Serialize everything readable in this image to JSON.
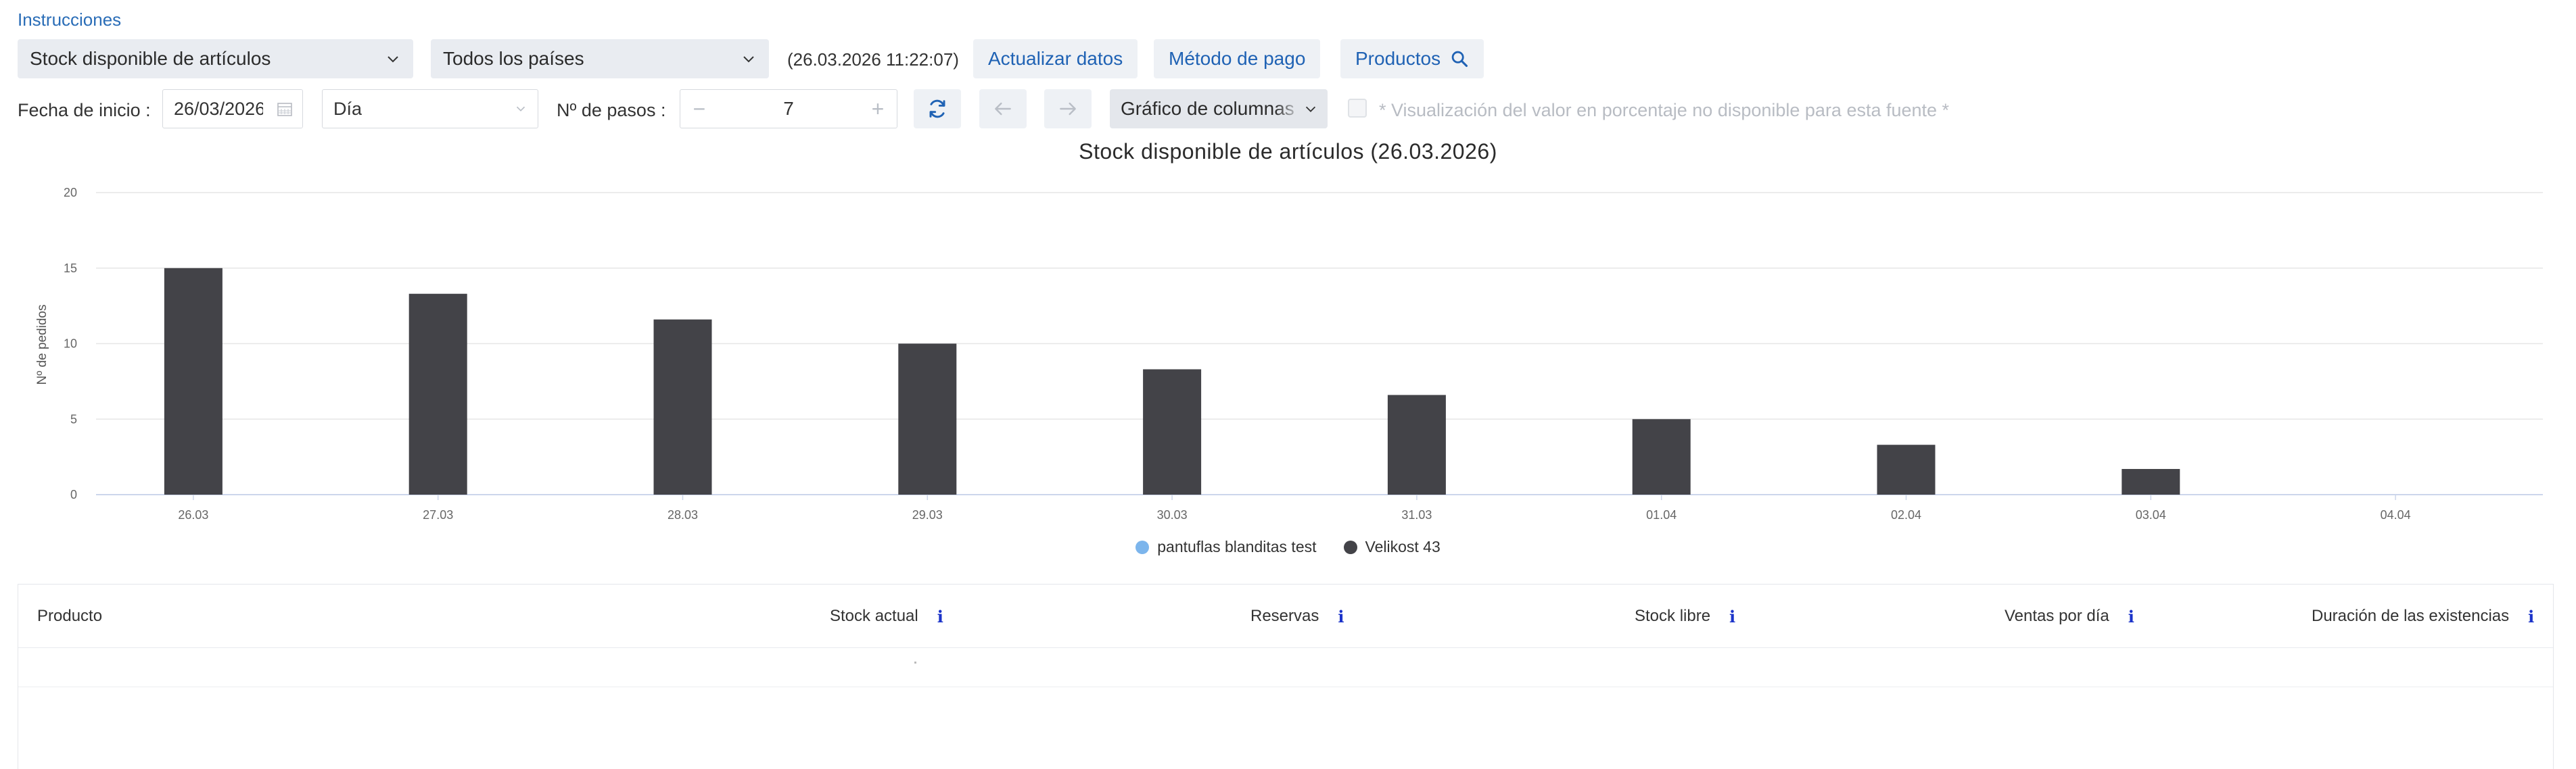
{
  "toplink": {
    "label": "Instrucciones"
  },
  "toolbar": {
    "source_select": "Stock disponible de artículos",
    "country_select": "Todos los países",
    "timestamp": "(26.03.2026 11:22:07)",
    "refresh_label": "Actualizar datos",
    "payment_label": "Método de pago",
    "products_label": "Productos"
  },
  "filters": {
    "start_date_label": "Fecha de inicio :",
    "start_date_value": "26/03/2026",
    "period_select": "Día",
    "steps_label": "Nº de pasos :",
    "steps_value": "7",
    "chart_type_select": "Gráfico de columnas",
    "percent_note": "* Visualización del valor en porcentaje no disponible para esta fuente *"
  },
  "colors": {
    "accent": "#2a6db7",
    "bar": "#434348",
    "series1": "#7cb5ec",
    "info": "#1b33c9"
  },
  "chart_data": {
    "type": "bar",
    "title": "Stock disponible de artículos (26.03.2026)",
    "ylabel": "Nº de pedidos",
    "xlabel": "",
    "ylim": [
      0,
      20
    ],
    "yticks": [
      0,
      5,
      10,
      15,
      20
    ],
    "categories": [
      "26.03",
      "27.03",
      "28.03",
      "29.03",
      "30.03",
      "31.03",
      "01.04",
      "02.04",
      "03.04",
      "04.04"
    ],
    "series": [
      {
        "name": "pantuflas blanditas test",
        "color": "#7cb5ec",
        "values": [
          0,
          0,
          0,
          0,
          0,
          0,
          0,
          0,
          0,
          0
        ]
      },
      {
        "name": "Velikost 43",
        "color": "#434348",
        "values": [
          15,
          13.3,
          11.6,
          10,
          8.3,
          6.6,
          5,
          3.3,
          1.7,
          0
        ]
      }
    ],
    "legend": "bottom-center",
    "grid": true
  },
  "table": {
    "columns": [
      {
        "label": "Producto",
        "info": ""
      },
      {
        "label": "Stock actual",
        "info": "i"
      },
      {
        "label": "Reservas",
        "info": "i"
      },
      {
        "label": "Stock libre",
        "info": "i"
      },
      {
        "label": "Ventas por día",
        "info": "i"
      },
      {
        "label": "Duración de las existencias",
        "info": "i"
      }
    ]
  }
}
